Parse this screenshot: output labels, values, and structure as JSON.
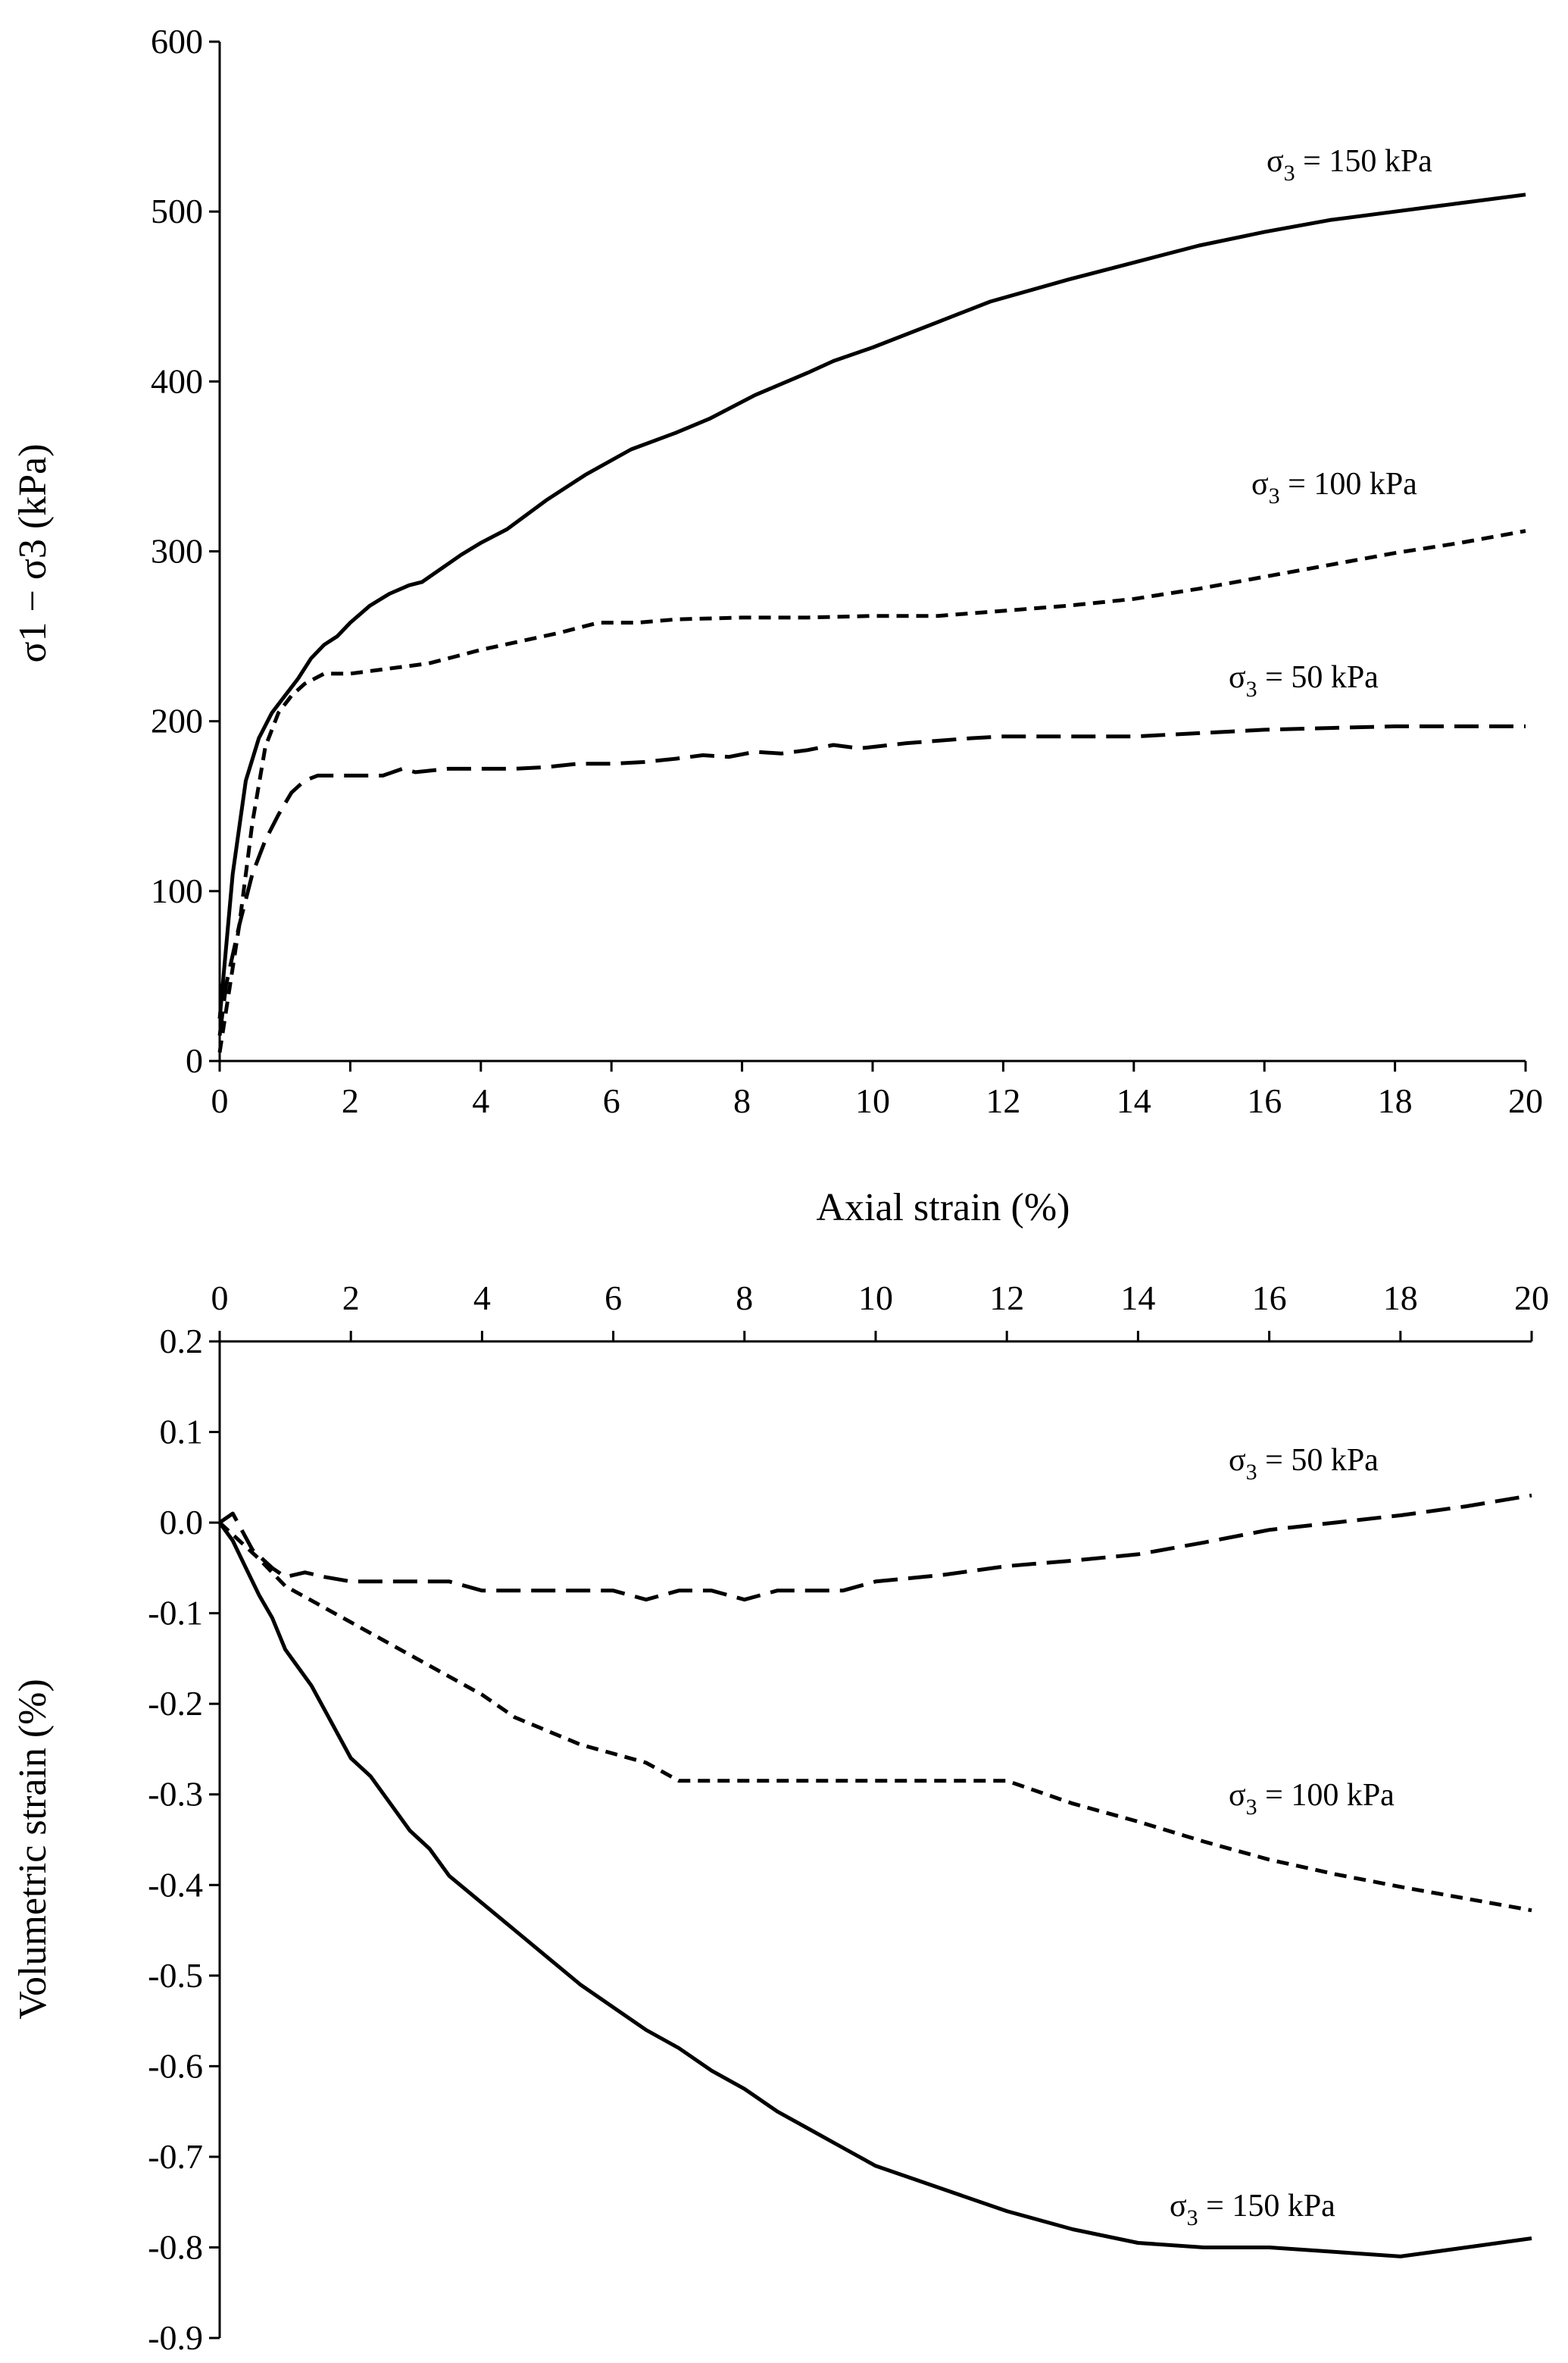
{
  "chart_data": [
    {
      "type": "line",
      "title": "",
      "xlabel": "Axial strain (%)",
      "ylabel": "σ1 − σ3 (kPa)",
      "xlim": [
        0,
        20
      ],
      "ylim": [
        0,
        600
      ],
      "xticks": [
        "0",
        "2",
        "4",
        "6",
        "8",
        "10",
        "12",
        "14",
        "16",
        "18",
        "20"
      ],
      "yticks": [
        "0",
        "100",
        "200",
        "300",
        "400",
        "500",
        "600"
      ],
      "grid": false,
      "series": [
        {
          "name": "σ3 = 150 kPa",
          "label_main": "σ",
          "label_sub": "3",
          "label_rest": " = 150 kPa",
          "style": "solid",
          "x": [
            0,
            0.2,
            0.4,
            0.6,
            0.8,
            1.0,
            1.2,
            1.4,
            1.6,
            1.8,
            2.0,
            2.3,
            2.6,
            2.9,
            3.1,
            3.4,
            3.7,
            4.0,
            4.4,
            5.0,
            5.6,
            6.3,
            7.0,
            7.5,
            8.2,
            9.0,
            9.4,
            10.0,
            11.0,
            11.8,
            13.0,
            14.0,
            15.0,
            16.0,
            17.0,
            18.0,
            19.0,
            20.0
          ],
          "y": [
            25,
            110,
            165,
            190,
            205,
            215,
            225,
            237,
            245,
            250,
            258,
            268,
            275,
            280,
            282,
            290,
            298,
            305,
            313,
            330,
            345,
            360,
            370,
            378,
            392,
            405,
            412,
            420,
            435,
            447,
            460,
            470,
            480,
            488,
            495,
            500,
            505,
            510
          ]
        },
        {
          "name": "σ3 = 100 kPa",
          "label_main": "σ",
          "label_sub": "3",
          "label_rest": " = 100 kPa",
          "style": "dashed",
          "x": [
            0,
            0.1,
            0.3,
            0.5,
            0.7,
            0.9,
            1.1,
            1.3,
            1.6,
            2.0,
            2.4,
            2.8,
            3.2,
            3.6,
            4.0,
            4.6,
            5.2,
            5.8,
            6.4,
            7.0,
            8.0,
            9.0,
            10.0,
            11.0,
            12.0,
            13.0,
            14.0,
            15.0,
            16.0,
            17.0,
            18.0,
            19.0,
            20.0
          ],
          "y": [
            5,
            30,
            80,
            140,
            185,
            205,
            215,
            222,
            228,
            228,
            230,
            232,
            234,
            238,
            242,
            247,
            252,
            258,
            258,
            260,
            261,
            261,
            262,
            262,
            265,
            268,
            272,
            278,
            285,
            292,
            299,
            305,
            312
          ]
        },
        {
          "name": "σ3 = 50 kPa",
          "label_main": "σ",
          "label_sub": "3",
          "label_rest": " = 50 kPa",
          "style": "long-dashed",
          "x": [
            0,
            0.1,
            0.3,
            0.5,
            0.7,
            0.9,
            1.1,
            1.3,
            1.5,
            2.0,
            2.5,
            2.8,
            3.0,
            3.5,
            4.0,
            4.5,
            5.0,
            5.5,
            6.0,
            6.5,
            7.0,
            7.4,
            7.8,
            8.2,
            8.6,
            9.0,
            9.4,
            9.8,
            10.5,
            11.5,
            12.0,
            13.0,
            14.0,
            15.0,
            16.0,
            17.0,
            18.0,
            19.0,
            20.0
          ],
          "y": [
            15,
            45,
            80,
            110,
            130,
            145,
            158,
            165,
            168,
            168,
            168,
            172,
            170,
            172,
            172,
            172,
            173,
            175,
            175,
            176,
            178,
            180,
            179,
            182,
            181,
            183,
            186,
            184,
            187,
            190,
            191,
            191,
            191,
            193,
            195,
            196,
            197,
            197,
            197
          ]
        }
      ]
    },
    {
      "type": "line",
      "title": "",
      "xlabel": "",
      "ylabel": "Volumetric strain (%)",
      "xlim": [
        0,
        20
      ],
      "ylim": [
        -0.9,
        0.2
      ],
      "xaxis_position": "top",
      "xticks": [
        "0",
        "2",
        "4",
        "6",
        "8",
        "10",
        "12",
        "14",
        "16",
        "18",
        "20"
      ],
      "yticks": [
        "0.2",
        "0.1",
        "0.0",
        "-0.1",
        "-0.2",
        "-0.3",
        "-0.4",
        "-0.5",
        "-0.6",
        "-0.7",
        "-0.8",
        "-0.9"
      ],
      "grid": false,
      "series": [
        {
          "name": "σ3 = 50 kPa",
          "label_main": "σ",
          "label_sub": "3",
          "label_rest": " = 50 kPa",
          "style": "long-dashed",
          "x": [
            0,
            0.2,
            0.5,
            0.8,
            1.0,
            1.3,
            1.6,
            2.0,
            2.5,
            3.0,
            3.5,
            4.0,
            5.0,
            6.0,
            6.5,
            7.0,
            7.5,
            8.0,
            8.5,
            9.0,
            9.5,
            10.0,
            11.0,
            12.0,
            13.0,
            14.0,
            15.0,
            16.0,
            17.0,
            18.0,
            19.0,
            20.0
          ],
          "y": [
            0.0,
            0.01,
            -0.03,
            -0.05,
            -0.06,
            -0.055,
            -0.06,
            -0.065,
            -0.065,
            -0.065,
            -0.065,
            -0.075,
            -0.075,
            -0.075,
            -0.085,
            -0.075,
            -0.075,
            -0.085,
            -0.075,
            -0.075,
            -0.075,
            -0.065,
            -0.058,
            -0.048,
            -0.042,
            -0.035,
            -0.022,
            -0.008,
            0.0,
            0.008,
            0.018,
            0.03
          ]
        },
        {
          "name": "σ3 = 100 kPa",
          "label_main": "σ",
          "label_sub": "3",
          "label_rest": " = 100 kPa",
          "style": "dashed",
          "x": [
            0,
            0.3,
            0.6,
            1.0,
            1.5,
            2.0,
            2.5,
            3.0,
            3.5,
            4.0,
            4.5,
            5.0,
            5.5,
            6.0,
            6.5,
            7.0,
            8.0,
            9.0,
            10.0,
            11.0,
            12.0,
            13.0,
            14.0,
            15.0,
            16.0,
            17.0,
            18.0,
            19.0,
            20.0
          ],
          "y": [
            0.0,
            -0.02,
            -0.04,
            -0.07,
            -0.09,
            -0.11,
            -0.13,
            -0.15,
            -0.17,
            -0.19,
            -0.215,
            -0.23,
            -0.245,
            -0.255,
            -0.265,
            -0.285,
            -0.285,
            -0.285,
            -0.285,
            -0.285,
            -0.285,
            -0.31,
            -0.33,
            -0.352,
            -0.372,
            -0.388,
            -0.402,
            -0.415,
            -0.428
          ]
        },
        {
          "name": "σ3 = 150 kPa",
          "label_main": "σ",
          "label_sub": "3",
          "label_rest": " = 150 kPa",
          "style": "solid",
          "x": [
            0,
            0.2,
            0.4,
            0.6,
            0.8,
            1.0,
            1.2,
            1.4,
            1.7,
            2.0,
            2.3,
            2.6,
            2.9,
            3.2,
            3.5,
            4.0,
            4.5,
            5.0,
            5.5,
            6.0,
            6.5,
            7.0,
            7.5,
            8.0,
            8.5,
            9.0,
            9.5,
            10.0,
            11.0,
            12.0,
            13.0,
            14.0,
            15.0,
            16.0,
            17.0,
            18.0,
            19.0,
            20.0
          ],
          "y": [
            0.0,
            -0.02,
            -0.05,
            -0.08,
            -0.105,
            -0.14,
            -0.16,
            -0.18,
            -0.22,
            -0.26,
            -0.28,
            -0.31,
            -0.34,
            -0.36,
            -0.39,
            -0.42,
            -0.45,
            -0.48,
            -0.51,
            -0.535,
            -0.56,
            -0.58,
            -0.605,
            -0.625,
            -0.65,
            -0.67,
            -0.69,
            -0.71,
            -0.735,
            -0.76,
            -0.78,
            -0.795,
            -0.8,
            -0.8,
            -0.805,
            -0.81,
            -0.8,
            -0.79
          ]
        }
      ]
    }
  ]
}
